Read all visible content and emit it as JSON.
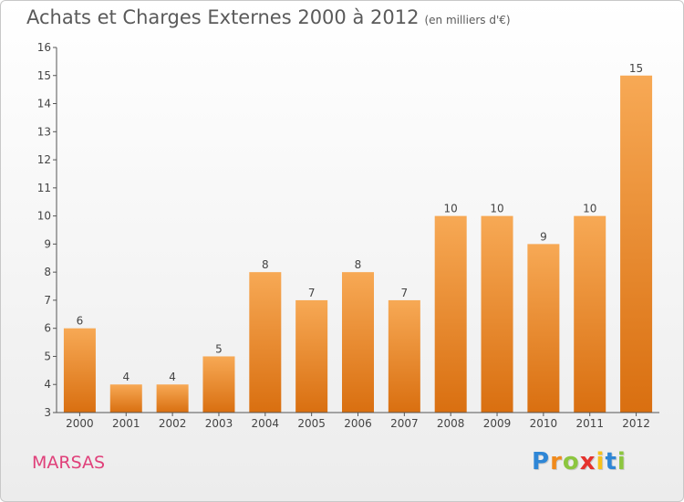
{
  "header": {
    "title": "Achats et Charges Externes 2000 à 2012",
    "unit": "(en milliers d'€)"
  },
  "footer": {
    "town": "MARSAS",
    "logo": [
      "P",
      "r",
      "o",
      "x",
      "i",
      "t",
      "i"
    ]
  },
  "colors": {
    "bar_top": "#f7a955",
    "bar_bottom": "#d96f10",
    "town": "#e0407a",
    "title": "#5a5a5a"
  },
  "chart_data": {
    "type": "bar",
    "title": "Achats et Charges Externes 2000 à 2012",
    "subtitle": "(en milliers d'€)",
    "xlabel": "",
    "ylabel": "",
    "categories": [
      "2000",
      "2001",
      "2002",
      "2003",
      "2004",
      "2005",
      "2006",
      "2007",
      "2008",
      "2009",
      "2010",
      "2011",
      "2012"
    ],
    "values": [
      6,
      4,
      4,
      5,
      8,
      7,
      8,
      7,
      10,
      10,
      9,
      10,
      15
    ],
    "ylim": [
      3,
      16
    ],
    "yticks": [
      3,
      4,
      5,
      6,
      7,
      8,
      9,
      10,
      11,
      12,
      13,
      14,
      15,
      16
    ],
    "grid": false,
    "legend": "none"
  }
}
